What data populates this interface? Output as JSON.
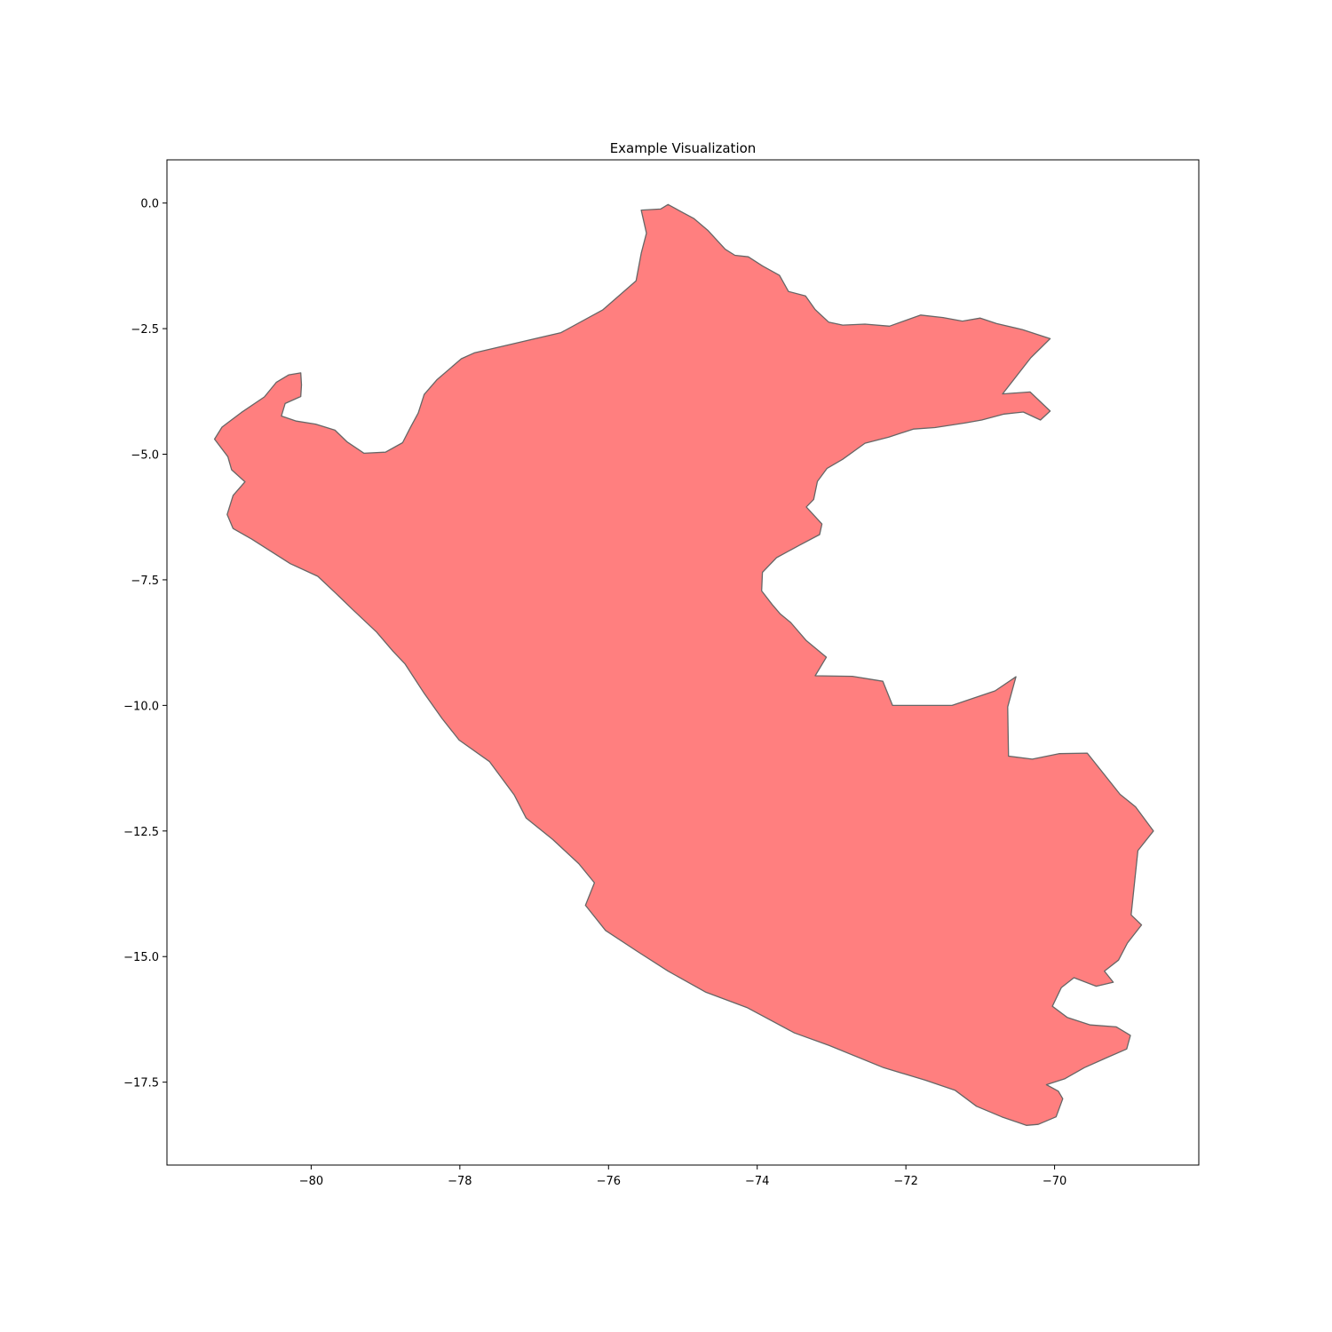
{
  "chart_data": {
    "type": "map",
    "title": "Example Visualization",
    "xlabel": "",
    "ylabel": "",
    "xlim": [
      -81.94,
      -68.06
    ],
    "ylim": [
      -19.15,
      0.86
    ],
    "x_ticks": [
      -80,
      -78,
      -76,
      -74,
      -72,
      -70
    ],
    "x_tick_labels": [
      "−80",
      "−78",
      "−76",
      "−74",
      "−72",
      "−70"
    ],
    "y_ticks": [
      0.0,
      -2.5,
      -5.0,
      -7.5,
      -10.0,
      -12.5,
      -15.0,
      -17.5
    ],
    "y_tick_labels": [
      "0.0",
      "−2.5",
      "−5.0",
      "−7.5",
      "−10.0",
      "−12.5",
      "−15.0",
      "−17.5"
    ],
    "grid": false,
    "legend": "none",
    "region": {
      "fill": "#ff7f7f",
      "edge": "#666666",
      "outline": [
        [
          -75.56,
          -0.14
        ],
        [
          -75.3,
          -0.12
        ],
        [
          -75.2,
          -0.03
        ],
        [
          -75.0,
          -0.19
        ],
        [
          -74.85,
          -0.31
        ],
        [
          -74.66,
          -0.55
        ],
        [
          -74.43,
          -0.92
        ],
        [
          -74.3,
          -1.04
        ],
        [
          -74.12,
          -1.07
        ],
        [
          -73.93,
          -1.25
        ],
        [
          -73.7,
          -1.44
        ],
        [
          -73.58,
          -1.76
        ],
        [
          -73.35,
          -1.85
        ],
        [
          -73.22,
          -2.12
        ],
        [
          -73.04,
          -2.37
        ],
        [
          -72.85,
          -2.43
        ],
        [
          -72.55,
          -2.41
        ],
        [
          -72.22,
          -2.45
        ],
        [
          -72.03,
          -2.35
        ],
        [
          -71.8,
          -2.23
        ],
        [
          -71.5,
          -2.28
        ],
        [
          -71.24,
          -2.35
        ],
        [
          -71.0,
          -2.29
        ],
        [
          -70.78,
          -2.4
        ],
        [
          -70.43,
          -2.52
        ],
        [
          -70.06,
          -2.7
        ],
        [
          -70.32,
          -3.08
        ],
        [
          -70.7,
          -3.8
        ],
        [
          -70.33,
          -3.76
        ],
        [
          -70.06,
          -4.14
        ],
        [
          -70.19,
          -4.32
        ],
        [
          -70.42,
          -4.16
        ],
        [
          -70.68,
          -4.2
        ],
        [
          -70.98,
          -4.32
        ],
        [
          -71.21,
          -4.38
        ],
        [
          -71.61,
          -4.47
        ],
        [
          -71.9,
          -4.5
        ],
        [
          -72.23,
          -4.66
        ],
        [
          -72.55,
          -4.78
        ],
        [
          -72.85,
          -5.1
        ],
        [
          -73.06,
          -5.28
        ],
        [
          -73.19,
          -5.54
        ],
        [
          -73.24,
          -5.9
        ],
        [
          -73.34,
          -6.05
        ],
        [
          -73.13,
          -6.39
        ],
        [
          -73.16,
          -6.6
        ],
        [
          -73.43,
          -6.81
        ],
        [
          -73.74,
          -7.06
        ],
        [
          -73.93,
          -7.35
        ],
        [
          -73.94,
          -7.72
        ],
        [
          -73.8,
          -7.99
        ],
        [
          -73.69,
          -8.18
        ],
        [
          -73.55,
          -8.35
        ],
        [
          -73.34,
          -8.71
        ],
        [
          -73.07,
          -9.04
        ],
        [
          -73.22,
          -9.41
        ],
        [
          -72.72,
          -9.42
        ],
        [
          -72.31,
          -9.52
        ],
        [
          -72.18,
          -10.0
        ],
        [
          -71.71,
          -10.0
        ],
        [
          -71.38,
          -10.0
        ],
        [
          -70.8,
          -9.71
        ],
        [
          -70.52,
          -9.43
        ],
        [
          -70.63,
          -10.03
        ],
        [
          -70.62,
          -11.01
        ],
        [
          -70.3,
          -11.07
        ],
        [
          -69.94,
          -10.96
        ],
        [
          -69.56,
          -10.95
        ],
        [
          -69.12,
          -11.77
        ],
        [
          -68.91,
          -12.02
        ],
        [
          -68.67,
          -12.5
        ],
        [
          -68.88,
          -12.89
        ],
        [
          -68.93,
          -13.6
        ],
        [
          -68.97,
          -14.17
        ],
        [
          -68.83,
          -14.37
        ],
        [
          -69.02,
          -14.73
        ],
        [
          -69.14,
          -15.07
        ],
        [
          -69.33,
          -15.29
        ],
        [
          -69.21,
          -15.51
        ],
        [
          -69.44,
          -15.59
        ],
        [
          -69.74,
          -15.42
        ],
        [
          -69.91,
          -15.62
        ],
        [
          -70.03,
          -15.99
        ],
        [
          -69.83,
          -16.21
        ],
        [
          -69.52,
          -16.36
        ],
        [
          -69.17,
          -16.4
        ],
        [
          -68.98,
          -16.57
        ],
        [
          -69.03,
          -16.84
        ],
        [
          -69.28,
          -17.0
        ],
        [
          -69.6,
          -17.21
        ],
        [
          -69.86,
          -17.43
        ],
        [
          -70.11,
          -17.55
        ],
        [
          -69.95,
          -17.68
        ],
        [
          -69.89,
          -17.83
        ],
        [
          -69.98,
          -18.19
        ],
        [
          -70.22,
          -18.34
        ],
        [
          -70.38,
          -18.36
        ],
        [
          -70.71,
          -18.19
        ],
        [
          -71.05,
          -17.98
        ],
        [
          -71.34,
          -17.66
        ],
        [
          -71.74,
          -17.46
        ],
        [
          -72.3,
          -17.21
        ],
        [
          -73.03,
          -16.77
        ],
        [
          -73.5,
          -16.52
        ],
        [
          -74.13,
          -16.02
        ],
        [
          -74.69,
          -15.71
        ],
        [
          -75.2,
          -15.29
        ],
        [
          -75.62,
          -14.89
        ],
        [
          -76.04,
          -14.48
        ],
        [
          -76.31,
          -13.98
        ],
        [
          -76.19,
          -13.53
        ],
        [
          -76.4,
          -13.15
        ],
        [
          -76.75,
          -12.67
        ],
        [
          -77.11,
          -12.24
        ],
        [
          -77.27,
          -11.78
        ],
        [
          -77.6,
          -11.12
        ],
        [
          -78.01,
          -10.69
        ],
        [
          -78.24,
          -10.26
        ],
        [
          -78.48,
          -9.76
        ],
        [
          -78.74,
          -9.17
        ],
        [
          -78.9,
          -8.92
        ],
        [
          -79.12,
          -8.54
        ],
        [
          -79.45,
          -8.08
        ],
        [
          -79.66,
          -7.78
        ],
        [
          -79.91,
          -7.43
        ],
        [
          -80.28,
          -7.18
        ],
        [
          -80.8,
          -6.69
        ],
        [
          -81.05,
          -6.48
        ],
        [
          -81.13,
          -6.2
        ],
        [
          -81.05,
          -5.82
        ],
        [
          -80.89,
          -5.55
        ],
        [
          -81.07,
          -5.31
        ],
        [
          -81.12,
          -5.05
        ],
        [
          -81.3,
          -4.7
        ],
        [
          -81.2,
          -4.46
        ],
        [
          -80.94,
          -4.17
        ],
        [
          -80.63,
          -3.86
        ],
        [
          -80.47,
          -3.57
        ],
        [
          -80.3,
          -3.42
        ],
        [
          -80.14,
          -3.38
        ],
        [
          -80.13,
          -3.62
        ],
        [
          -80.14,
          -3.85
        ],
        [
          -80.35,
          -3.99
        ],
        [
          -80.4,
          -4.24
        ],
        [
          -80.2,
          -4.34
        ],
        [
          -79.94,
          -4.4
        ],
        [
          -79.68,
          -4.52
        ],
        [
          -79.52,
          -4.75
        ],
        [
          -79.29,
          -4.98
        ],
        [
          -79.0,
          -4.96
        ],
        [
          -78.77,
          -4.77
        ],
        [
          -78.67,
          -4.48
        ],
        [
          -78.56,
          -4.18
        ],
        [
          -78.48,
          -3.81
        ],
        [
          -78.31,
          -3.52
        ],
        [
          -77.98,
          -3.1
        ],
        [
          -77.8,
          -2.98
        ],
        [
          -76.64,
          -2.58
        ],
        [
          -76.08,
          -2.13
        ],
        [
          -75.63,
          -1.55
        ],
        [
          -75.56,
          -1.0
        ],
        [
          -75.49,
          -0.6
        ],
        [
          -75.56,
          -0.14
        ]
      ]
    }
  }
}
